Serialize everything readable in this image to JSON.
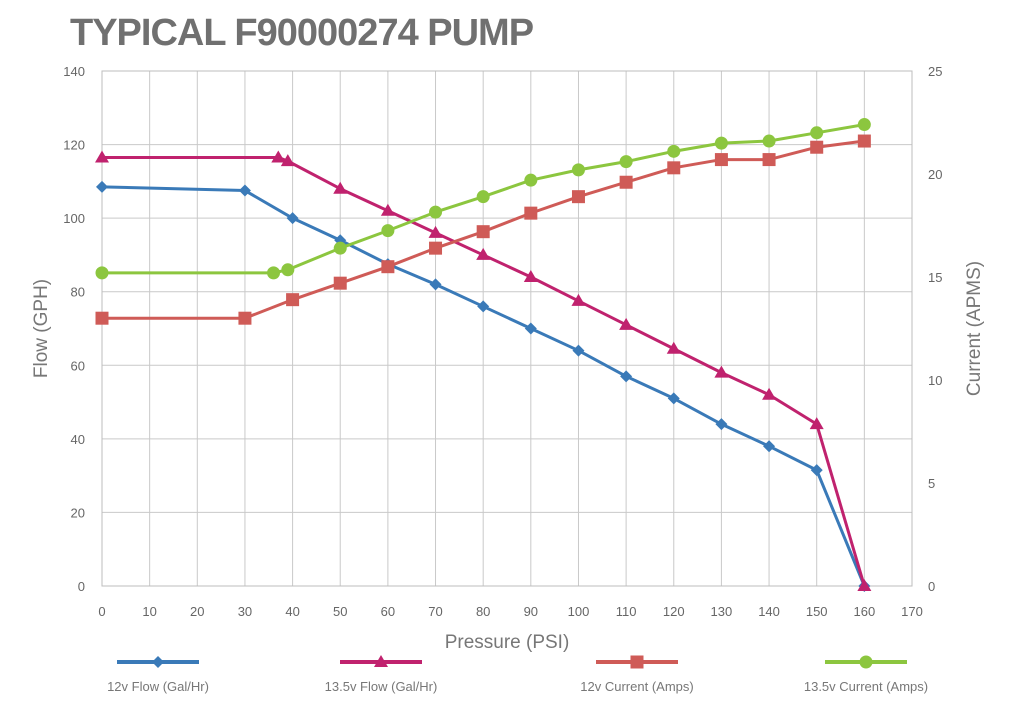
{
  "chart_data": {
    "type": "line",
    "title": "TYPICAL F90000274 PUMP",
    "xlabel": "Pressure (PSI)",
    "ylabel": "Flow (GPH)",
    "y2label": "Current (APMS)",
    "xlim": [
      0,
      170
    ],
    "ylim": [
      0,
      140
    ],
    "y2lim": [
      0,
      25
    ],
    "xticks": [
      0,
      10,
      20,
      30,
      40,
      50,
      60,
      70,
      80,
      90,
      100,
      110,
      120,
      130,
      140,
      150,
      160,
      170
    ],
    "yticks": [
      0,
      20,
      40,
      60,
      80,
      100,
      120,
      140
    ],
    "y2ticks": [
      0,
      5,
      10,
      15,
      20,
      25
    ],
    "grid": true,
    "legend_position": "bottom",
    "series": [
      {
        "name": "12v Flow (Gal/Hr)",
        "axis": "left",
        "color": "#3a7ab8",
        "marker": "diamond",
        "x": [
          0,
          30,
          40,
          50,
          60,
          70,
          80,
          90,
          100,
          110,
          120,
          130,
          140,
          150,
          160
        ],
        "y": [
          108.5,
          107.5,
          100,
          94,
          87.5,
          82,
          76,
          70,
          64,
          57,
          51,
          44,
          38,
          31.5,
          0
        ]
      },
      {
        "name": "13.5v Flow (Gal/Hr)",
        "axis": "left",
        "color": "#c0226e",
        "marker": "triangle",
        "x": [
          0,
          37,
          39,
          50,
          60,
          70,
          80,
          90,
          100,
          110,
          120,
          130,
          140,
          150,
          160
        ],
        "y": [
          116.5,
          116.5,
          115.5,
          108,
          102,
          96,
          90,
          84,
          77.5,
          71,
          64.5,
          58,
          52,
          44,
          0
        ]
      },
      {
        "name": "12v Current (Amps)",
        "axis": "right",
        "color": "#cf5b57",
        "marker": "square",
        "x": [
          0,
          30,
          40,
          50,
          60,
          70,
          80,
          90,
          100,
          110,
          120,
          130,
          140,
          150,
          160
        ],
        "y": [
          13.0,
          13.0,
          13.9,
          14.7,
          15.5,
          16.4,
          17.2,
          18.1,
          18.9,
          19.6,
          20.3,
          20.7,
          20.7,
          21.3,
          21.6
        ]
      },
      {
        "name": "13.5v Current (Amps)",
        "axis": "right",
        "color": "#8cc63f",
        "marker": "circle",
        "x": [
          0,
          36,
          39,
          50,
          60,
          70,
          80,
          90,
          100,
          110,
          120,
          130,
          140,
          150,
          160
        ],
        "y": [
          15.2,
          15.2,
          15.35,
          16.4,
          17.25,
          18.15,
          18.9,
          19.7,
          20.2,
          20.6,
          21.1,
          21.5,
          21.6,
          22.0,
          22.4
        ]
      }
    ]
  }
}
